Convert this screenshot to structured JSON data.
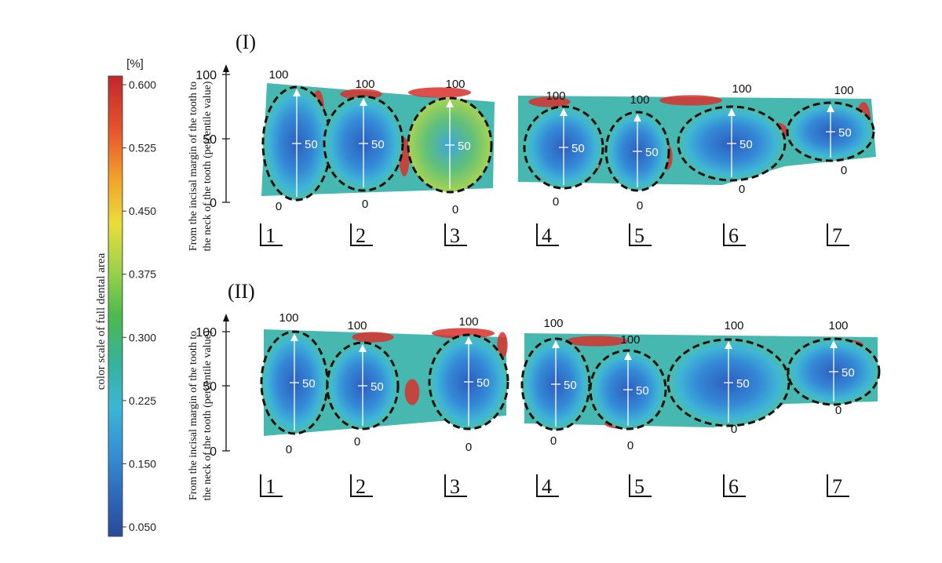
{
  "colorbar": {
    "unit": "[%]",
    "title": "color scale of full dental area",
    "ticks": [
      "0.600",
      "0.525",
      "0.450",
      "0.375",
      "0.300",
      "0.225",
      "0.150",
      "0.050"
    ],
    "colors": [
      "#c1272d",
      "#e44b2b",
      "#f08a2a",
      "#f2d02e",
      "#b9d94a",
      "#5bbf4a",
      "#30a86a",
      "#2fb4b0",
      "#38a9dc",
      "#2f7fc9",
      "#2a4f9e"
    ]
  },
  "panels": [
    {
      "label": "(I)",
      "axis_label_line1": "From the incisal margin of the tooth to",
      "axis_label_line2": "the neck of the tooth (percentile value)",
      "axis_ticks": [
        "100",
        "50",
        "0"
      ],
      "teeth": [
        {
          "id": "1",
          "top": "100",
          "mid": "50",
          "bottom": "0"
        },
        {
          "id": "2",
          "top": "100",
          "mid": "50",
          "bottom": "0"
        },
        {
          "id": "3",
          "top": "100",
          "mid": "50",
          "bottom": "0"
        },
        {
          "id": "4",
          "top": "100",
          "mid": "50",
          "bottom": "0"
        },
        {
          "id": "5",
          "top": "100",
          "mid": "50",
          "bottom": "0"
        },
        {
          "id": "6",
          "top": "100",
          "mid": "50",
          "bottom": "0"
        },
        {
          "id": "7",
          "top": "100",
          "mid": "50",
          "bottom": "0"
        }
      ]
    },
    {
      "label": "(II)",
      "axis_label_line1": "From the incisal margin of the tooth to",
      "axis_label_line2": "the neck of the tooth (percentile value)",
      "axis_ticks": [
        "100",
        "50",
        "0"
      ],
      "teeth": [
        {
          "id": "1",
          "top": "100",
          "mid": "50",
          "bottom": "0"
        },
        {
          "id": "2",
          "top": "100",
          "mid": "50",
          "bottom": "0"
        },
        {
          "id": "3",
          "top": "100",
          "mid": "50",
          "bottom": "0"
        },
        {
          "id": "4",
          "top": "100",
          "mid": "50",
          "bottom": "0"
        },
        {
          "id": "5",
          "top": "100",
          "mid": "50",
          "bottom": "0"
        },
        {
          "id": "6",
          "top": "100",
          "mid": "50",
          "bottom": "0"
        },
        {
          "id": "7",
          "top": "100",
          "mid": "50",
          "bottom": "0"
        }
      ]
    }
  ]
}
